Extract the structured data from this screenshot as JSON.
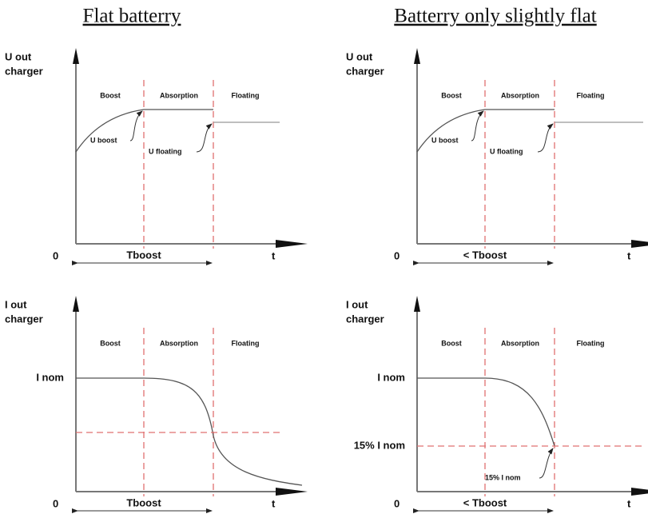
{
  "columns": [
    {
      "title": "Flat batterry",
      "voltage": {
        "axis_label": [
          "U out",
          "charger"
        ],
        "phases": [
          "Boost",
          "Absorption",
          "Floating"
        ],
        "annotations": [
          "U boost",
          "U floating"
        ],
        "origin": "0",
        "time": "t",
        "span": "Tboost"
      },
      "current": {
        "axis_label": [
          "I out",
          "charger"
        ],
        "phases": [
          "Boost",
          "Absorption",
          "Floating"
        ],
        "levels": [
          "I nom"
        ],
        "annotations": [],
        "origin": "0",
        "time": "t",
        "span": "Tboost"
      }
    },
    {
      "title": "Batterry only slightly flat",
      "voltage": {
        "axis_label": [
          "U out",
          "charger"
        ],
        "phases": [
          "Boost",
          "Absorption",
          "Floating"
        ],
        "annotations": [
          "U boost",
          "U floating"
        ],
        "origin": "0",
        "time": "t",
        "span": "< Tboost"
      },
      "current": {
        "axis_label": [
          "I out",
          "charger"
        ],
        "phases": [
          "Boost",
          "Absorption",
          "Floating"
        ],
        "levels": [
          "I nom",
          "15% I nom"
        ],
        "annotations": [
          "15% I nom"
        ],
        "origin": "0",
        "time": "t",
        "span": "< Tboost"
      }
    }
  ]
}
